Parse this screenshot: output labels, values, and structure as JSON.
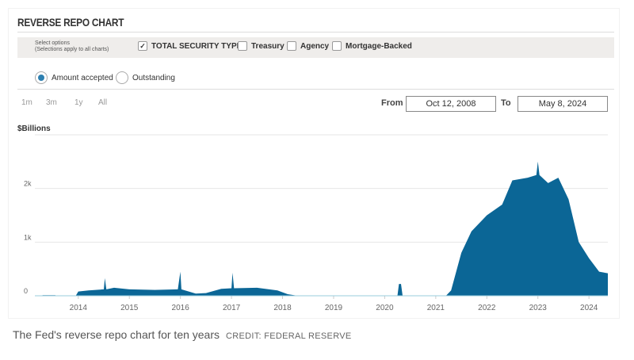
{
  "header": {
    "title": "REVERSE REPO CHART"
  },
  "options": {
    "select_label_1": "Select options",
    "select_label_2": "(Selections apply to all charts)",
    "checkboxes": [
      {
        "label": "TOTAL SECURITY TYPES",
        "checked": true
      },
      {
        "label": "Treasury",
        "checked": false
      },
      {
        "label": "Agency",
        "checked": false
      },
      {
        "label": "Mortgage-Backed",
        "checked": false
      }
    ]
  },
  "radios": [
    {
      "label": "Amount accepted",
      "selected": true
    },
    {
      "label": "Outstanding",
      "selected": false
    }
  ],
  "ranges": [
    "1m",
    "3m",
    "1y",
    "All"
  ],
  "date_range": {
    "from_label": "From",
    "from": "Oct 12, 2008",
    "to_label": "To",
    "to": "May 8, 2024"
  },
  "caption": {
    "text": "The Fed's reverse repo chart for ten years",
    "credit": "CREDIT: FEDERAL RESERVE"
  },
  "chart_data": {
    "type": "area",
    "ylabel": "$Billions",
    "ylim": [
      0,
      3000
    ],
    "xlim": [
      2013.15,
      2024.37
    ],
    "yticks": [
      {
        "v": 0,
        "label": "0"
      },
      {
        "v": 1000,
        "label": "1k"
      },
      {
        "v": 2000,
        "label": "2k"
      }
    ],
    "xticks": [
      2014,
      2015,
      2016,
      2017,
      2018,
      2019,
      2020,
      2021,
      2022,
      2023,
      2024
    ],
    "color": "#0b6696",
    "x": [
      2013.3,
      2013.55,
      2013.56,
      2013.95,
      2014.0,
      2014.2,
      2014.5,
      2014.52,
      2014.55,
      2014.7,
      2015.0,
      2015.5,
      2015.95,
      2016.0,
      2016.02,
      2016.3,
      2016.5,
      2016.8,
      2017.0,
      2017.02,
      2017.05,
      2017.5,
      2017.9,
      2018.1,
      2018.3,
      2018.5,
      2020.25,
      2020.28,
      2020.32,
      2020.35,
      2021.2,
      2021.3,
      2021.5,
      2021.7,
      2022.0,
      2022.3,
      2022.5,
      2022.8,
      2022.97,
      2023.0,
      2023.03,
      2023.2,
      2023.4,
      2023.6,
      2023.8,
      2024.0,
      2024.2,
      2024.37
    ],
    "values": [
      10,
      10,
      0,
      0,
      80,
      100,
      120,
      330,
      120,
      150,
      120,
      110,
      120,
      450,
      120,
      40,
      50,
      130,
      140,
      430,
      140,
      150,
      100,
      30,
      0,
      0,
      0,
      220,
      220,
      0,
      0,
      100,
      800,
      1200,
      1500,
      1700,
      2150,
      2200,
      2250,
      2500,
      2250,
      2100,
      2200,
      1800,
      1000,
      700,
      450,
      420
    ]
  }
}
